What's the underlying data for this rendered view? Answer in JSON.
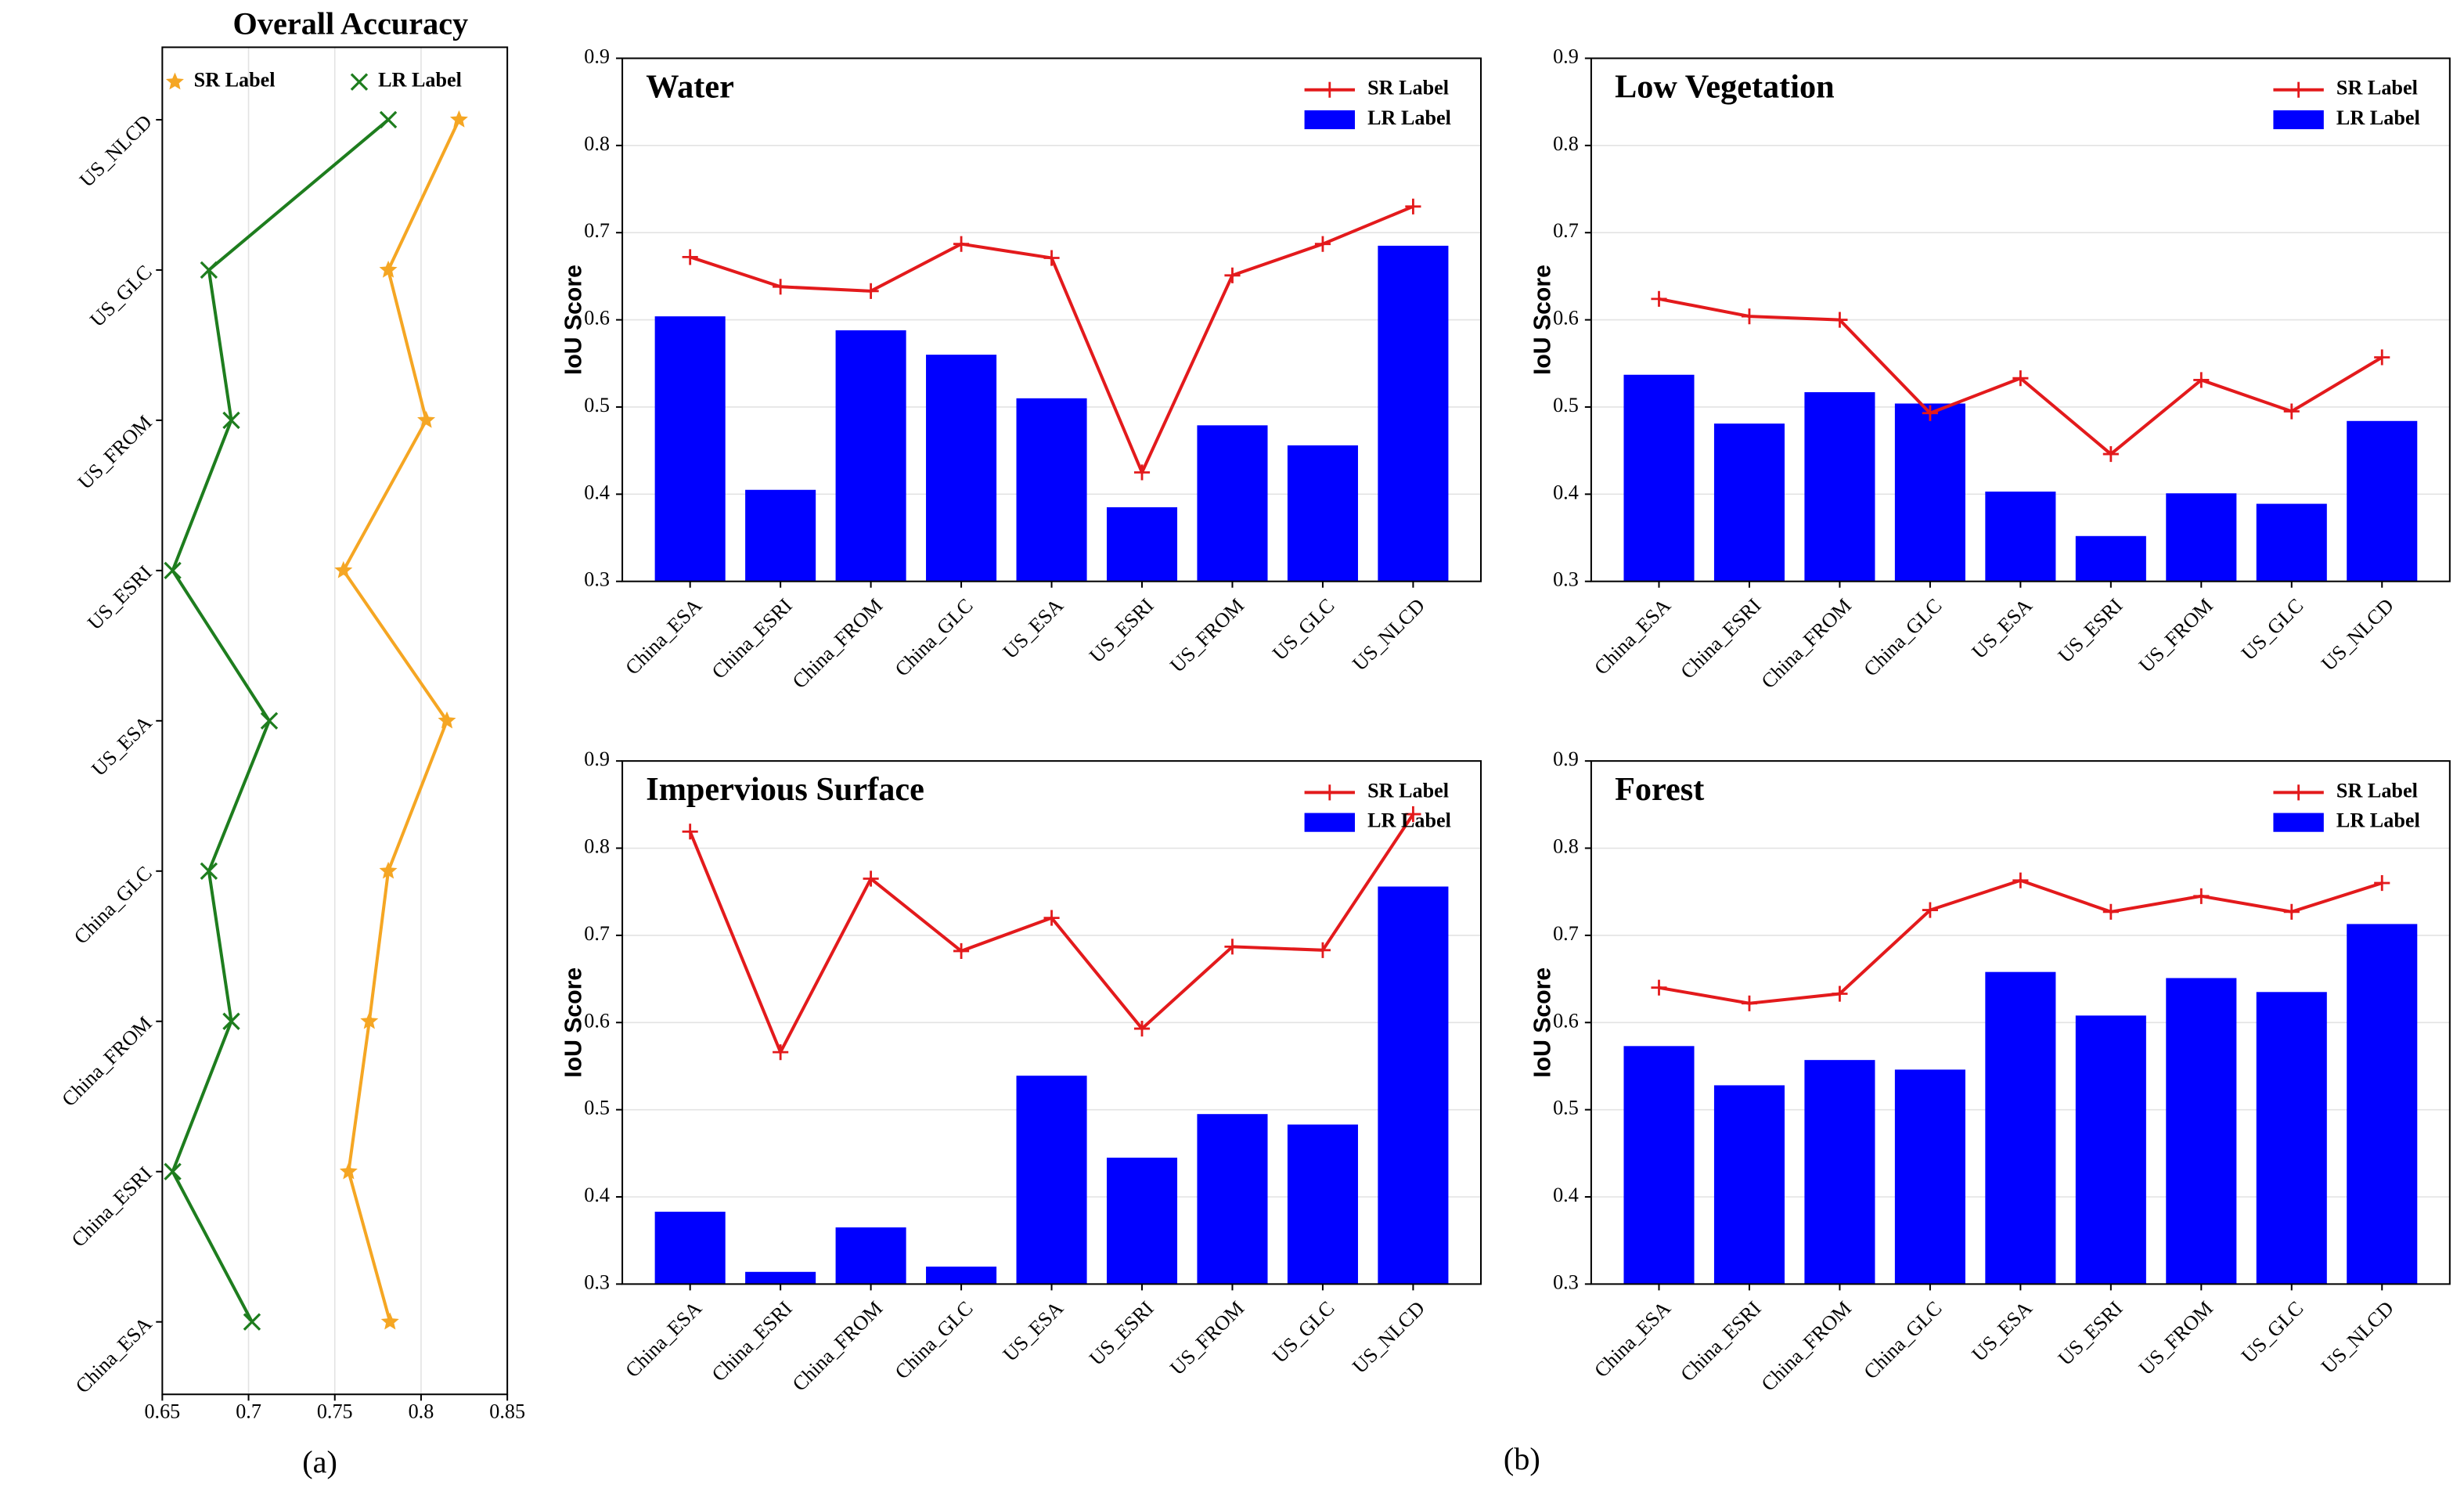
{
  "chart_data": [
    {
      "type": "line",
      "orientation": "horizontal",
      "title": "Overall Accuracy",
      "categories": [
        "China_ESA",
        "China_ESRI",
        "China_FROM",
        "China_GLC",
        "US_ESA",
        "US_ESRI",
        "US_FROM",
        "US_GLC",
        "US_NLCD"
      ],
      "series": [
        {
          "name": "SR Label",
          "color": "#f5a623",
          "marker": "star",
          "values": [
            0.782,
            0.758,
            0.77,
            0.781,
            0.815,
            0.755,
            0.803,
            0.781,
            0.822
          ]
        },
        {
          "name": "LR Label",
          "color": "#1e7d1e",
          "marker": "x",
          "values": [
            0.702,
            0.656,
            0.69,
            0.677,
            0.712,
            0.656,
            0.69,
            0.677,
            0.781
          ]
        }
      ],
      "xlim": [
        0.65,
        0.85
      ],
      "xticks": [
        0.65,
        0.7,
        0.75,
        0.8,
        0.85
      ],
      "grid": true,
      "legend": "top"
    },
    {
      "type": "bar",
      "title": "Water",
      "ylabel": "IoU Score",
      "categories": [
        "China_ESA",
        "China_ESRI",
        "China_FROM",
        "China_GLC",
        "US_ESA",
        "US_ESRI",
        "US_FROM",
        "US_GLC",
        "US_NLCD"
      ],
      "series": [
        {
          "name": "SR Label",
          "mark": "line",
          "color": "#e31a1c",
          "values": [
            0.672,
            0.638,
            0.633,
            0.687,
            0.671,
            0.425,
            0.651,
            0.687,
            0.73
          ]
        },
        {
          "name": "LR Label",
          "mark": "bar",
          "color": "#0000ff",
          "values": [
            0.604,
            0.405,
            0.588,
            0.56,
            0.51,
            0.385,
            0.479,
            0.456,
            0.685
          ]
        }
      ],
      "ylim": [
        0.3,
        0.9
      ],
      "yticks": [
        0.3,
        0.4,
        0.5,
        0.6,
        0.7,
        0.8,
        0.9
      ],
      "grid": true,
      "legend": "upper right"
    },
    {
      "type": "bar",
      "title": "Low Vegetation",
      "ylabel": "IoU Score",
      "categories": [
        "China_ESA",
        "China_ESRI",
        "China_FROM",
        "China_GLC",
        "US_ESA",
        "US_ESRI",
        "US_FROM",
        "US_GLC",
        "US_NLCD"
      ],
      "series": [
        {
          "name": "SR Label",
          "mark": "line",
          "color": "#e31a1c",
          "values": [
            0.624,
            0.604,
            0.6,
            0.493,
            0.533,
            0.446,
            0.531,
            0.495,
            0.557
          ]
        },
        {
          "name": "LR Label",
          "mark": "bar",
          "color": "#0000ff",
          "values": [
            0.537,
            0.481,
            0.517,
            0.504,
            0.403,
            0.352,
            0.401,
            0.389,
            0.484
          ]
        }
      ],
      "ylim": [
        0.3,
        0.9
      ],
      "yticks": [
        0.3,
        0.4,
        0.5,
        0.6,
        0.7,
        0.8,
        0.9
      ],
      "grid": true,
      "legend": "upper right"
    },
    {
      "type": "bar",
      "title": "Impervious Surface",
      "ylabel": "IoU Score",
      "categories": [
        "China_ESA",
        "China_ESRI",
        "China_FROM",
        "China_GLC",
        "US_ESA",
        "US_ESRI",
        "US_FROM",
        "US_GLC",
        "US_NLCD"
      ],
      "series": [
        {
          "name": "SR Label",
          "mark": "line",
          "color": "#e31a1c",
          "values": [
            0.819,
            0.566,
            0.765,
            0.682,
            0.72,
            0.593,
            0.687,
            0.683,
            0.839
          ]
        },
        {
          "name": "LR Label",
          "mark": "bar",
          "color": "#0000ff",
          "values": [
            0.383,
            0.314,
            0.365,
            0.32,
            0.539,
            0.445,
            0.495,
            0.483,
            0.756
          ]
        }
      ],
      "ylim": [
        0.3,
        0.9
      ],
      "yticks": [
        0.3,
        0.4,
        0.5,
        0.6,
        0.7,
        0.8,
        0.9
      ],
      "grid": true,
      "legend": "upper right"
    },
    {
      "type": "bar",
      "title": "Forest",
      "ylabel": "IoU Score",
      "categories": [
        "China_ESA",
        "China_ESRI",
        "China_FROM",
        "China_GLC",
        "US_ESA",
        "US_ESRI",
        "US_FROM",
        "US_GLC",
        "US_NLCD"
      ],
      "series": [
        {
          "name": "SR Label",
          "mark": "line",
          "color": "#e31a1c",
          "values": [
            0.64,
            0.622,
            0.633,
            0.729,
            0.763,
            0.727,
            0.745,
            0.727,
            0.76
          ]
        },
        {
          "name": "LR Label",
          "mark": "bar",
          "color": "#0000ff",
          "values": [
            0.573,
            0.528,
            0.557,
            0.546,
            0.658,
            0.608,
            0.651,
            0.635,
            0.713
          ]
        }
      ],
      "ylim": [
        0.3,
        0.9
      ],
      "yticks": [
        0.3,
        0.4,
        0.5,
        0.6,
        0.7,
        0.8,
        0.9
      ],
      "grid": true,
      "legend": "upper right"
    }
  ],
  "captions": [
    "(a)",
    "(b)"
  ]
}
